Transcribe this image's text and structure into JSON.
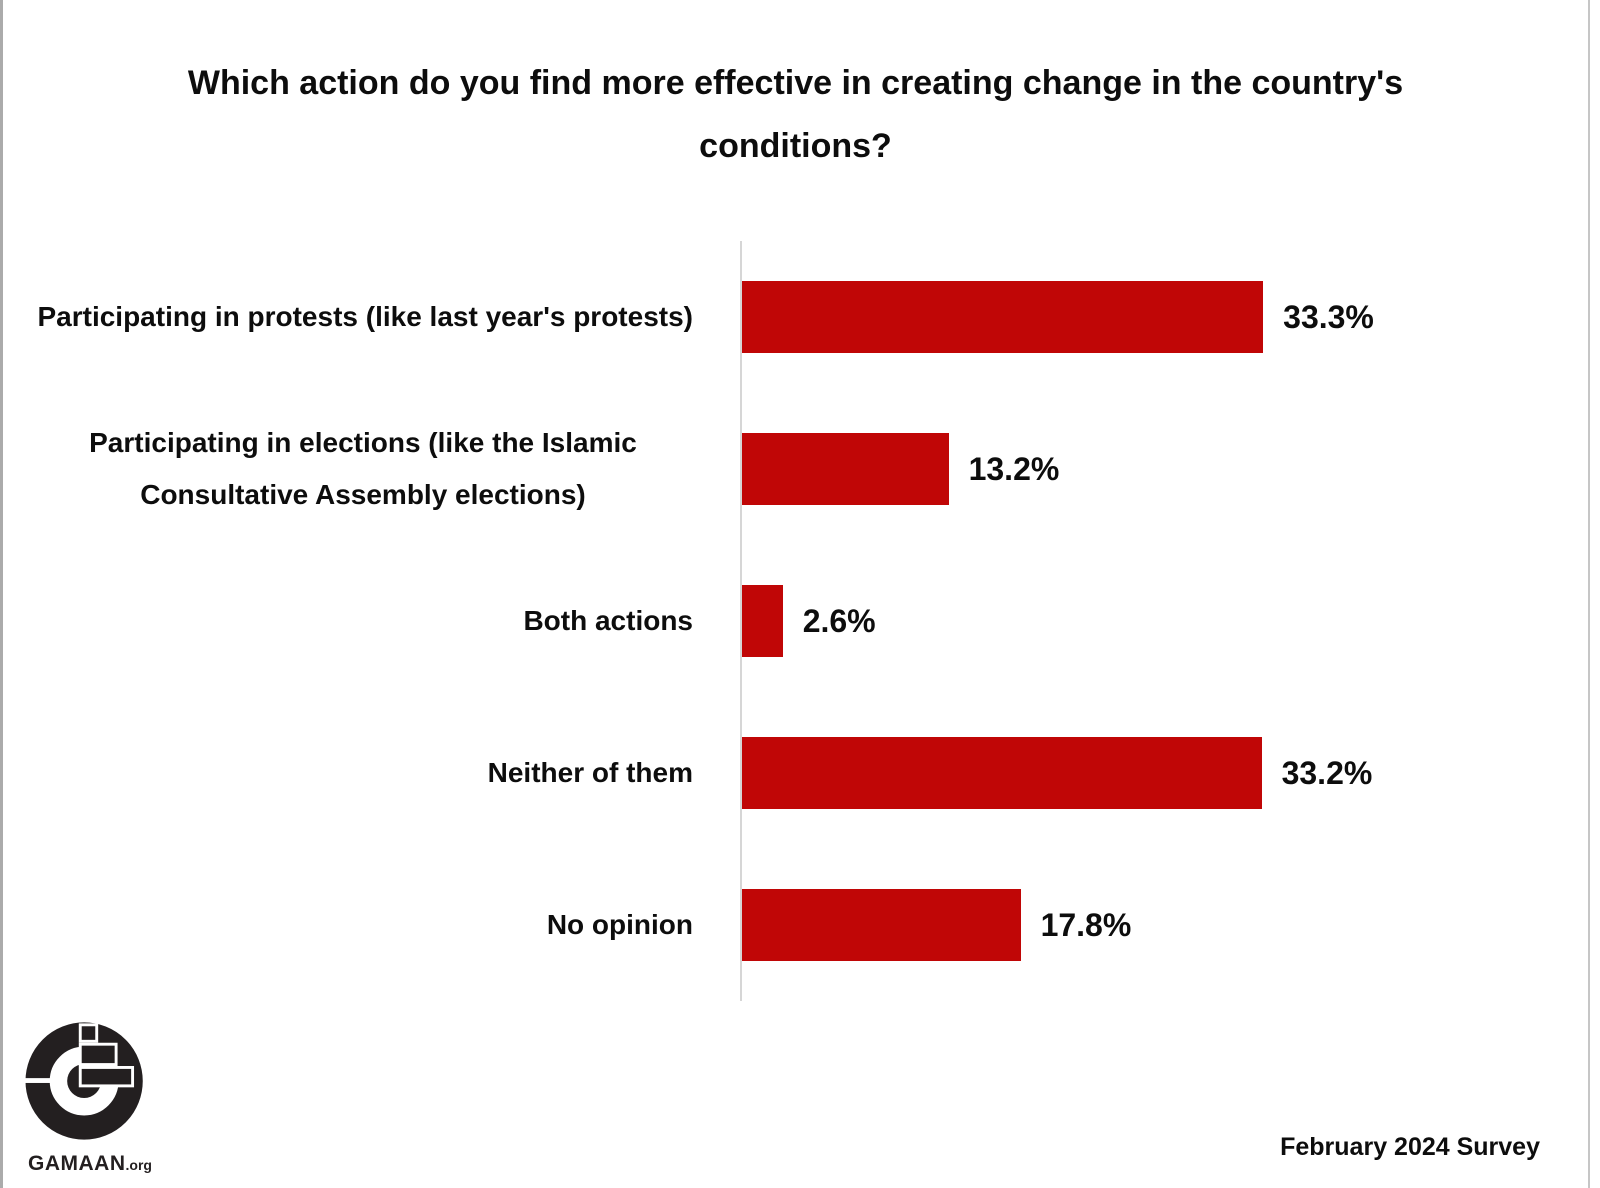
{
  "title": "Which action do you find more effective in creating change in the country's conditions?",
  "logo": {
    "name": "GAMAAN",
    "suffix": ".org"
  },
  "footer": {
    "survey_label": "February 2024 Survey"
  },
  "colors": {
    "bar": "#c00606",
    "axis_line": "#d6d6d6",
    "text": "#0d0d0d",
    "logo": "#231f20",
    "frame_left": "#ababab",
    "frame_right": "#c6c6c6"
  },
  "chart_data": {
    "type": "bar",
    "orientation": "horizontal",
    "title": "Which action do you find more effective in creating change in the country's conditions?",
    "categories": [
      "Participating in protests (like last year's protests)",
      "Participating in elections (like the Islamic Consultative Assembly elections)",
      "Both actions",
      "Neither of them",
      "No opinion"
    ],
    "values": [
      33.3,
      13.2,
      2.6,
      33.2,
      17.8
    ],
    "value_labels": [
      "33.3%",
      "13.2%",
      "2.6%",
      "33.2%",
      "17.8%"
    ],
    "xlim": [
      0,
      40
    ],
    "grid": false,
    "legend": false,
    "bar_color": "#c00606",
    "annotation": "February 2024 Survey"
  }
}
